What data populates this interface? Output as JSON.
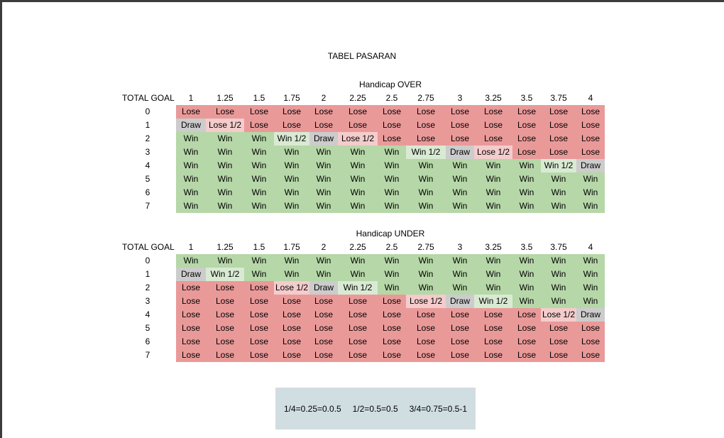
{
  "title": "TABEL PASARAN",
  "tables": [
    {
      "caption": "Handicap OVER",
      "corner": "TOTAL GOAL",
      "columns": [
        "1",
        "1.25",
        "1.5",
        "1.75",
        "2",
        "2.25",
        "2.5",
        "2.75",
        "3",
        "3.25",
        "3.5",
        "3.75",
        "4"
      ],
      "rows": [
        {
          "goal": "0",
          "cells": [
            "Lose",
            "Lose",
            "Lose",
            "Lose",
            "Lose",
            "Lose",
            "Lose",
            "Lose",
            "Lose",
            "Lose",
            "Lose",
            "Lose",
            "Lose"
          ]
        },
        {
          "goal": "1",
          "cells": [
            "Draw",
            "Lose 1/2",
            "Lose",
            "Lose",
            "Lose",
            "Lose",
            "Lose",
            "Lose",
            "Lose",
            "Lose",
            "Lose",
            "Lose",
            "Lose"
          ]
        },
        {
          "goal": "2",
          "cells": [
            "Win",
            "Win",
            "Win",
            "Win 1/2",
            "Draw",
            "Lose 1/2",
            "Lose",
            "Lose",
            "Lose",
            "Lose",
            "Lose",
            "Lose",
            "Lose"
          ]
        },
        {
          "goal": "3",
          "cells": [
            "Win",
            "Win",
            "Win",
            "Win",
            "Win",
            "Win",
            "Win",
            "Win 1/2",
            "Draw",
            "Lose 1/2",
            "Lose",
            "Lose",
            "Lose"
          ]
        },
        {
          "goal": "4",
          "cells": [
            "Win",
            "Win",
            "Win",
            "Win",
            "Win",
            "Win",
            "Win",
            "Win",
            "Win",
            "Win",
            "Win",
            "Win 1/2",
            "Draw"
          ]
        },
        {
          "goal": "5",
          "cells": [
            "Win",
            "Win",
            "Win",
            "Win",
            "Win",
            "Win",
            "Win",
            "Win",
            "Win",
            "Win",
            "Win",
            "Win",
            "Win"
          ]
        },
        {
          "goal": "6",
          "cells": [
            "Win",
            "Win",
            "Win",
            "Win",
            "Win",
            "Win",
            "Win",
            "Win",
            "Win",
            "Win",
            "Win",
            "Win",
            "Win"
          ]
        },
        {
          "goal": "7",
          "cells": [
            "Win",
            "Win",
            "Win",
            "Win",
            "Win",
            "Win",
            "Win",
            "Win",
            "Win",
            "Win",
            "Win",
            "Win",
            "Win"
          ]
        }
      ]
    },
    {
      "caption": "Handicap UNDER",
      "corner": "TOTAL GOAL",
      "columns": [
        "1",
        "1.25",
        "1.5",
        "1.75",
        "2",
        "2.25",
        "2.5",
        "2.75",
        "3",
        "3.25",
        "3.5",
        "3.75",
        "4"
      ],
      "rows": [
        {
          "goal": "0",
          "cells": [
            "Win",
            "Win",
            "Win",
            "Win",
            "Win",
            "Win",
            "Win",
            "Win",
            "Win",
            "Win",
            "Win",
            "Win",
            "Win"
          ]
        },
        {
          "goal": "1",
          "cells": [
            "Draw",
            "Win 1/2",
            "Win",
            "Win",
            "Win",
            "Win",
            "Win",
            "Win",
            "Win",
            "Win",
            "Win",
            "Win",
            "Win"
          ]
        },
        {
          "goal": "2",
          "cells": [
            "Lose",
            "Lose",
            "Lose",
            "Lose 1/2",
            "Draw",
            "Win 1/2",
            "Win",
            "Win",
            "Win",
            "Win",
            "Win",
            "Win",
            "Win"
          ]
        },
        {
          "goal": "3",
          "cells": [
            "Lose",
            "Lose",
            "Lose",
            "Lose",
            "Lose",
            "Lose",
            "Lose",
            "Lose 1/2",
            "Draw",
            "Win 1/2",
            "Win",
            "Win",
            "Win"
          ]
        },
        {
          "goal": "4",
          "cells": [
            "Lose",
            "Lose",
            "Lose",
            "Lose",
            "Lose",
            "Lose",
            "Lose",
            "Lose",
            "Lose",
            "Lose",
            "Lose",
            "Lose 1/2",
            "Draw"
          ]
        },
        {
          "goal": "5",
          "cells": [
            "Lose",
            "Lose",
            "Lose",
            "Lose",
            "Lose",
            "Lose",
            "Lose",
            "Lose",
            "Lose",
            "Lose",
            "Lose",
            "Lose",
            "Lose"
          ]
        },
        {
          "goal": "6",
          "cells": [
            "Lose",
            "Lose",
            "Lose",
            "Lose",
            "Lose",
            "Lose",
            "Lose",
            "Lose",
            "Lose",
            "Lose",
            "Lose",
            "Lose",
            "Lose"
          ]
        },
        {
          "goal": "7",
          "cells": [
            "Lose",
            "Lose",
            "Lose",
            "Lose",
            "Lose",
            "Lose",
            "Lose",
            "Lose",
            "Lose",
            "Lose",
            "Lose",
            "Lose",
            "Lose"
          ]
        }
      ]
    }
  ],
  "legend": [
    "1/4=0.25=0.0.5",
    "1/2=0.5=0.5",
    "3/4=0.75=0.5-1"
  ],
  "colors": {
    "win": "#b6d7a8",
    "lose": "#ea9999",
    "draw": "#cccccc",
    "half_win": "#d9ead3",
    "half_lose": "#f4cccc",
    "legend_bg": "#d0dee2"
  }
}
